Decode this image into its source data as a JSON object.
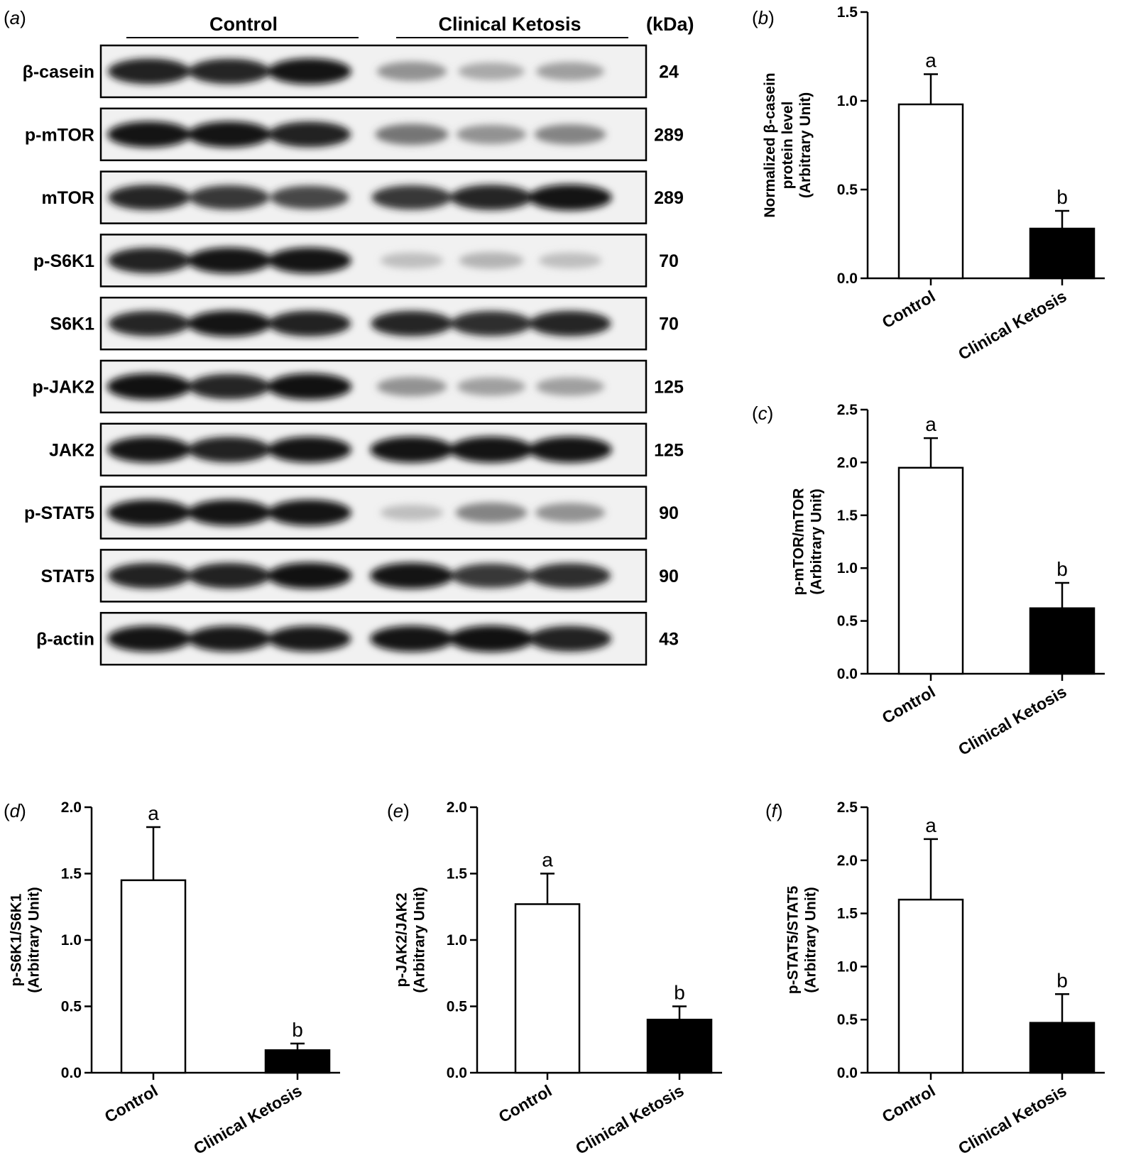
{
  "blot_panel": {
    "letter": "a",
    "groups": [
      "Control",
      "Clinical  Ketosis"
    ],
    "unit": "(kDa)",
    "rows": [
      {
        "protein": "β-casein",
        "kda": "24",
        "intensity": [
          0.92,
          0.9,
          0.95,
          0.55,
          0.45,
          0.5
        ]
      },
      {
        "protein": "p-mTOR",
        "kda": "289",
        "intensity": [
          0.95,
          0.95,
          0.92,
          0.65,
          0.55,
          0.6
        ]
      },
      {
        "protein": "mTOR",
        "kda": "289",
        "intensity": [
          0.9,
          0.85,
          0.8,
          0.85,
          0.9,
          0.95
        ]
      },
      {
        "protein": "p-S6K1",
        "kda": "70",
        "intensity": [
          0.92,
          0.95,
          0.95,
          0.35,
          0.4,
          0.35
        ]
      },
      {
        "protein": "S6K1",
        "kda": "70",
        "intensity": [
          0.9,
          0.95,
          0.92,
          0.9,
          0.88,
          0.9
        ]
      },
      {
        "protein": "p-JAK2",
        "kda": "125",
        "intensity": [
          0.97,
          0.9,
          0.97,
          0.55,
          0.5,
          0.5
        ]
      },
      {
        "protein": "JAK2",
        "kda": "125",
        "intensity": [
          0.95,
          0.92,
          0.95,
          0.95,
          0.95,
          0.95
        ]
      },
      {
        "protein": "p-STAT5",
        "kda": "90",
        "intensity": [
          0.95,
          0.95,
          0.95,
          0.35,
          0.6,
          0.55
        ]
      },
      {
        "protein": "STAT5",
        "kda": "90",
        "intensity": [
          0.92,
          0.92,
          0.97,
          0.95,
          0.85,
          0.88
        ]
      },
      {
        "protein": "β-actin",
        "kda": "43",
        "intensity": [
          0.95,
          0.93,
          0.93,
          0.95,
          0.97,
          0.92
        ]
      }
    ]
  },
  "chart_data": [
    {
      "panel": "b",
      "type": "bar",
      "categories": [
        "Control",
        "Clinical Ketosis"
      ],
      "values": [
        0.98,
        0.28
      ],
      "errors": [
        0.17,
        0.1
      ],
      "letters": [
        "a",
        "b"
      ],
      "ylabel": [
        "Normalized β-casein",
        "protein level",
        "(Arbitrary Unit)"
      ],
      "ylim": [
        0,
        1.5
      ],
      "ticks": [
        "0.0",
        "0.5",
        "1.0",
        "1.5"
      ],
      "colors": [
        "#ffffff",
        "#000000"
      ]
    },
    {
      "panel": "c",
      "type": "bar",
      "categories": [
        "Control",
        "Clinical Ketosis"
      ],
      "values": [
        1.95,
        0.62
      ],
      "errors": [
        0.28,
        0.24
      ],
      "letters": [
        "a",
        "b"
      ],
      "ylabel": [
        "p-mTOR/mTOR",
        "(Arbitrary Unit)"
      ],
      "ylim": [
        0,
        2.5
      ],
      "ticks": [
        "0.0",
        "0.5",
        "1.0",
        "1.5",
        "2.0",
        "2.5"
      ],
      "colors": [
        "#ffffff",
        "#000000"
      ]
    },
    {
      "panel": "d",
      "type": "bar",
      "categories": [
        "Control",
        "Clinical Ketosis"
      ],
      "values": [
        1.45,
        0.17
      ],
      "errors": [
        0.4,
        0.05
      ],
      "letters": [
        "a",
        "b"
      ],
      "ylabel": [
        "p-S6K1/S6K1",
        "(Arbitrary Unit)"
      ],
      "ylim": [
        0,
        2.0
      ],
      "ticks": [
        "0.0",
        "0.5",
        "1.0",
        "1.5",
        "2.0"
      ],
      "colors": [
        "#ffffff",
        "#000000"
      ]
    },
    {
      "panel": "e",
      "type": "bar",
      "categories": [
        "Control",
        "Clinical Ketosis"
      ],
      "values": [
        1.27,
        0.4
      ],
      "errors": [
        0.23,
        0.1
      ],
      "letters": [
        "a",
        "b"
      ],
      "ylabel": [
        "p-JAK2/JAK2",
        "(Arbitrary Unit)"
      ],
      "ylim": [
        0,
        2.0
      ],
      "ticks": [
        "0.0",
        "0.5",
        "1.0",
        "1.5",
        "2.0"
      ],
      "colors": [
        "#ffffff",
        "#000000"
      ]
    },
    {
      "panel": "f",
      "type": "bar",
      "categories": [
        "Control",
        "Clinical Ketosis"
      ],
      "values": [
        1.63,
        0.47
      ],
      "errors": [
        0.57,
        0.27
      ],
      "letters": [
        "a",
        "b"
      ],
      "ylabel": [
        "p-STAT5/STAT5",
        "(Arbitrary Unit)"
      ],
      "ylim": [
        0,
        2.5
      ],
      "ticks": [
        "0.0",
        "0.5",
        "1.0",
        "1.5",
        "2.0",
        "2.5"
      ],
      "colors": [
        "#ffffff",
        "#000000"
      ]
    }
  ]
}
